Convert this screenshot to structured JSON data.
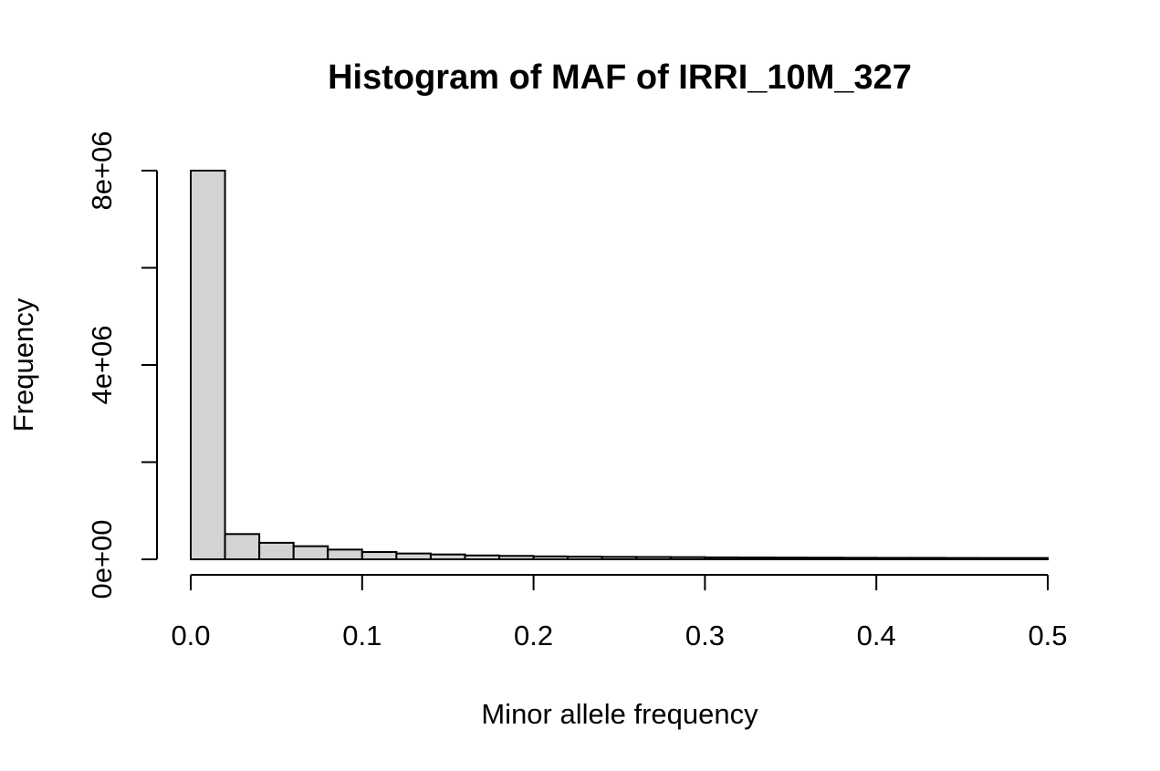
{
  "chart_data": {
    "type": "bar",
    "title": "Histogram of MAF of IRRI_10M_327",
    "xlabel": "Minor allele frequency",
    "ylabel": "Frequency",
    "xlim": [
      0,
      0.5
    ],
    "ylim": [
      0,
      8000000
    ],
    "bin_width": 0.02,
    "bin_starts": [
      0.0,
      0.02,
      0.04,
      0.06,
      0.08,
      0.1,
      0.12,
      0.14,
      0.16,
      0.18,
      0.2,
      0.22,
      0.24,
      0.26,
      0.28,
      0.3,
      0.32,
      0.34,
      0.36,
      0.38,
      0.4,
      0.42,
      0.44,
      0.46,
      0.48
    ],
    "values": [
      8000000,
      520000,
      340000,
      270000,
      200000,
      150000,
      120000,
      100000,
      80000,
      70000,
      60000,
      55000,
      50000,
      48000,
      45000,
      40000,
      38000,
      36000,
      34000,
      32000,
      30000,
      30000,
      28000,
      27000,
      27000
    ],
    "x_ticks": [
      0,
      0.1,
      0.2,
      0.3,
      0.4,
      0.5
    ],
    "x_tick_labels": [
      "0.0",
      "0.1",
      "0.2",
      "0.3",
      "0.4",
      "0.5"
    ],
    "y_ticks": [
      0,
      2000000,
      4000000,
      6000000,
      8000000
    ],
    "y_tick_labels": [
      "0e+00",
      "",
      "4e+06",
      "",
      "8e+06"
    ],
    "bar_fill": "#d3d3d3",
    "bar_stroke": "#000000",
    "grid": false,
    "legend": "none"
  }
}
